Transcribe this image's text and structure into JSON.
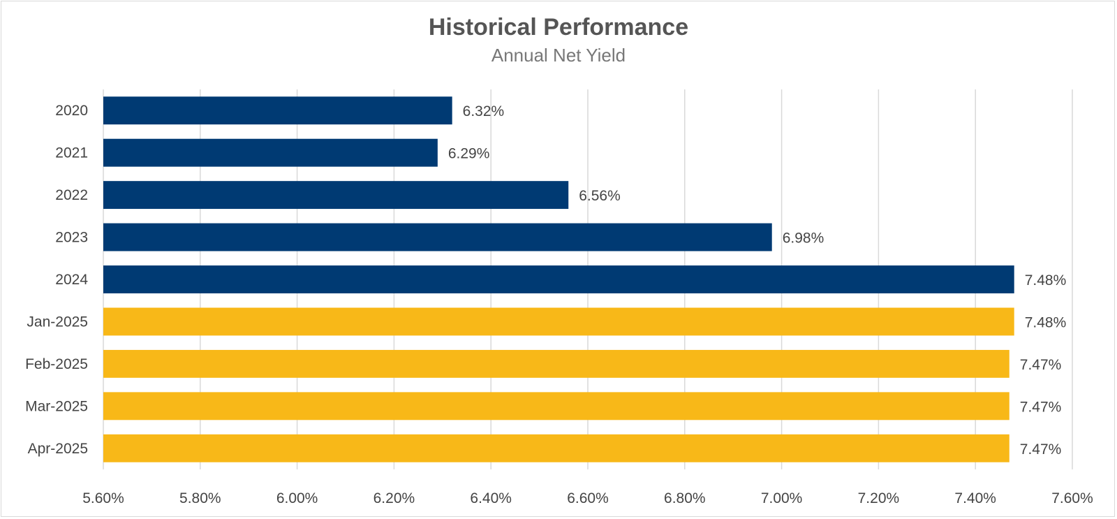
{
  "chart_data": {
    "type": "bar",
    "orientation": "horizontal",
    "title": "Historical Performance",
    "subtitle": "Annual Net Yield",
    "categories": [
      "2020",
      "2021",
      "2022",
      "2023",
      "2024",
      "Jan-2025",
      "Feb-2025",
      "Mar-2025",
      "Apr-2025"
    ],
    "values": [
      6.32,
      6.29,
      6.56,
      6.98,
      7.48,
      7.48,
      7.47,
      7.47,
      7.47
    ],
    "value_labels": [
      "6.32%",
      "6.29%",
      "6.56%",
      "6.98%",
      "7.48%",
      "7.48%",
      "7.47%",
      "7.47%",
      "7.47%"
    ],
    "bar_colors": [
      "#003a73",
      "#003a73",
      "#003a73",
      "#003a73",
      "#003a73",
      "#f8b818",
      "#f8b818",
      "#f8b818",
      "#f8b818"
    ],
    "xlim": [
      5.6,
      7.6
    ],
    "xticks": [
      5.6,
      5.8,
      6.0,
      6.2,
      6.4,
      6.6,
      6.8,
      7.0,
      7.2,
      7.4,
      7.6
    ],
    "xtick_labels": [
      "5.60%",
      "5.80%",
      "6.00%",
      "6.20%",
      "6.40%",
      "6.60%",
      "6.80%",
      "7.00%",
      "7.20%",
      "7.40%",
      "7.60%"
    ],
    "grid": "vertical",
    "legend": "none"
  }
}
